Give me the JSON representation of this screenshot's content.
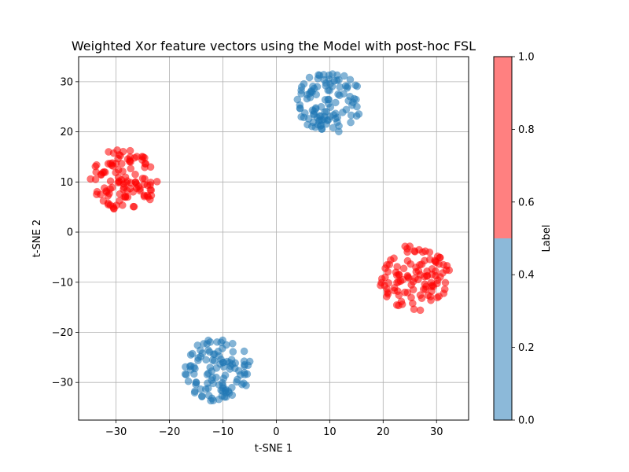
{
  "chart_data": {
    "type": "scatter",
    "title": "Weighted Xor feature vectors using the Model with post-hoc FSL",
    "xlabel": "t-SNE 1",
    "ylabel": "t-SNE 2",
    "xlim": [
      -37,
      36
    ],
    "ylim": [
      -37.5,
      35
    ],
    "xticks": [
      -30,
      -20,
      -10,
      0,
      10,
      20,
      30
    ],
    "yticks": [
      -30,
      -20,
      -10,
      0,
      10,
      20,
      30
    ],
    "xtick_labels": [
      "−30",
      "−20",
      "−10",
      "0",
      "10",
      "20",
      "30"
    ],
    "ytick_labels": [
      "−30",
      "−20",
      "−10",
      "0",
      "10",
      "20",
      "30"
    ],
    "grid": true,
    "colorbar": {
      "label": "Label",
      "range": [
        0,
        1
      ],
      "ticks": [
        0.0,
        0.2,
        0.4,
        0.6,
        0.8,
        1.0
      ],
      "tick_labels": [
        "0.0",
        "0.2",
        "0.4",
        "0.6",
        "0.8",
        "1.0"
      ],
      "segments": [
        {
          "from": 0.0,
          "to": 0.5,
          "color": "#8cb9d9"
        },
        {
          "from": 0.5,
          "to": 1.0,
          "color": "#ff8080"
        }
      ]
    },
    "series": [
      {
        "label_value": 0,
        "color": "#1f77b4",
        "alpha": 0.55,
        "clusters": [
          {
            "cx": 10,
            "cy": 26,
            "r": 6.2
          },
          {
            "cx": -11,
            "cy": -27.5,
            "r": 6.3
          }
        ]
      },
      {
        "label_value": 1,
        "color": "#ff0000",
        "alpha": 0.55,
        "clusters": [
          {
            "cx": -28.5,
            "cy": 10.5,
            "r": 6.3
          },
          {
            "cx": 26,
            "cy": -9,
            "r": 6.8
          }
        ]
      }
    ],
    "points_per_cluster": 110
  }
}
